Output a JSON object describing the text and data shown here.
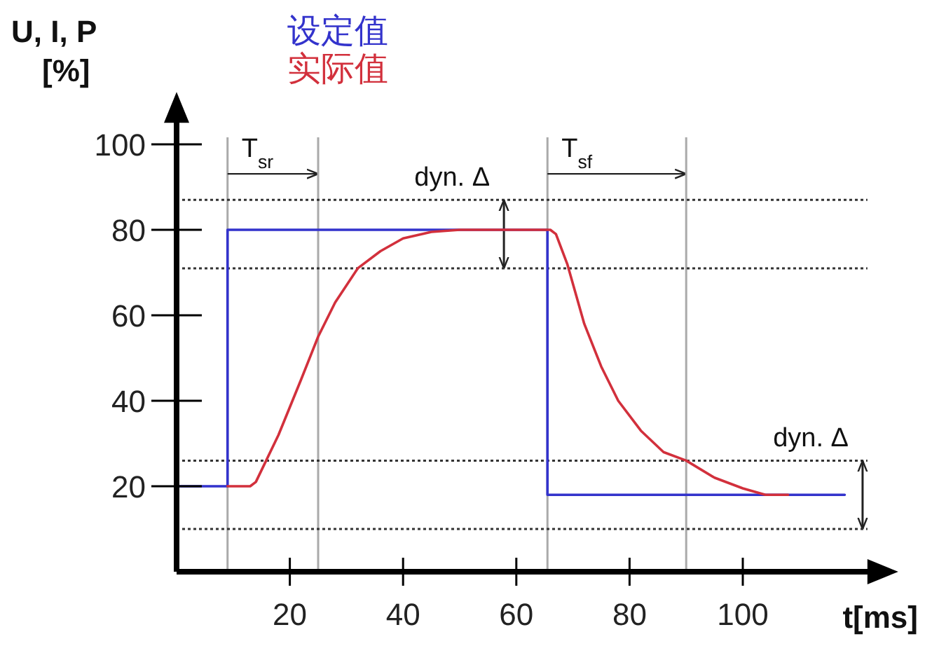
{
  "chart_data": {
    "type": "line",
    "xlabel": "t[ms]",
    "ylabel": "U, I, P\n[%]",
    "xlim": [
      0,
      123
    ],
    "ylim": [
      0,
      107
    ],
    "xticks": [
      20,
      40,
      60,
      80,
      100
    ],
    "yticks": [
      20,
      40,
      60,
      80,
      100
    ],
    "legend": "top",
    "grid": false,
    "series": [
      {
        "name": "设定值",
        "color": "#3333cc",
        "x": [
          0,
          9,
          9,
          65.5,
          65.5,
          118
        ],
        "values": [
          20,
          20,
          80,
          80,
          18,
          18
        ]
      },
      {
        "name": "实际值",
        "color": "#d2303c",
        "x": [
          9,
          13,
          14,
          18,
          22,
          25,
          28,
          32,
          36,
          40,
          45,
          50,
          66,
          67,
          69,
          72,
          75,
          78,
          82,
          86,
          90,
          95,
          100,
          104,
          108
        ],
        "values": [
          20,
          20,
          21,
          32,
          45,
          55,
          63,
          71,
          75,
          78,
          79.5,
          80,
          80,
          79,
          72,
          58,
          48,
          40,
          33,
          28,
          26,
          22,
          19.5,
          18,
          18
        ]
      }
    ],
    "ref_lines": [
      {
        "axis": "x",
        "value": 9,
        "label": "T$_{sr}$",
        "color": "#aaaaaa"
      },
      {
        "axis": "x",
        "value": 25,
        "color": "#aaaaaa"
      },
      {
        "axis": "x",
        "value": 65.5,
        "label": "T$_{sf}$",
        "color": "#aaaaaa"
      },
      {
        "axis": "x",
        "value": 90,
        "color": "#aaaaaa"
      },
      {
        "axis": "y",
        "value": 87,
        "label": "dyn. Δ",
        "color": "#333333",
        "line_style": "dotted"
      },
      {
        "axis": "y",
        "value": 71,
        "color": "#333333",
        "line_style": "dotted"
      },
      {
        "axis": "y",
        "value": 26,
        "label": "dyn. Δ",
        "color": "#333333",
        "line_style": "dotted"
      },
      {
        "axis": "y",
        "value": 10,
        "color": "#333333",
        "line_style": "dotted"
      }
    ]
  }
}
